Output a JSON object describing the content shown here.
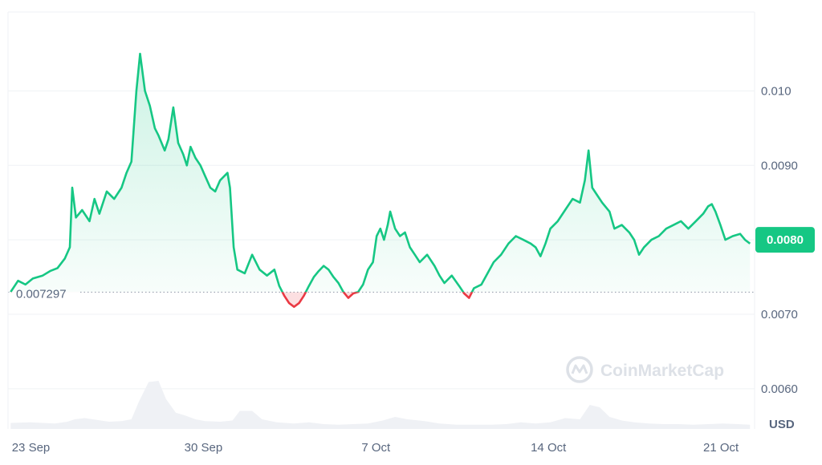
{
  "chart_data": {
    "type": "line",
    "title": "",
    "xlabel": "",
    "ylabel": "",
    "currency_label": "USD",
    "watermark": "CoinMarketCap",
    "y_ticks": [
      {
        "value": 0.006,
        "label": "0.0060"
      },
      {
        "value": 0.007,
        "label": "0.0070"
      },
      {
        "value": 0.009,
        "label": "0.0090"
      },
      {
        "value": 0.01,
        "label": "0.010"
      }
    ],
    "x_ticks": [
      {
        "day": 0,
        "label": "23 Sep"
      },
      {
        "day": 7,
        "label": "30 Sep"
      },
      {
        "day": 14,
        "label": "7 Oct"
      },
      {
        "day": 21,
        "label": "14 Oct"
      },
      {
        "day": 28,
        "label": "21 Oct"
      }
    ],
    "ylim": [
      0.00546,
      0.01106
    ],
    "grid": true,
    "reference_price": 0.007297,
    "reference_label": "0.007297",
    "current_price": 0.008,
    "current_price_label": "0.0080",
    "colors": {
      "up": "#16c784",
      "down": "#ea3943",
      "grid": "#eff2f5",
      "axis_text": "#58667e",
      "volume": "#eff1f5",
      "watermark": "#dde1e7"
    },
    "series": [
      {
        "points": [
          [
            -0.3,
            0.0073
          ],
          [
            0.0,
            0.00745
          ],
          [
            0.3,
            0.0074
          ],
          [
            0.6,
            0.00748
          ],
          [
            1.0,
            0.00752
          ],
          [
            1.3,
            0.00758
          ],
          [
            1.6,
            0.00762
          ],
          [
            1.9,
            0.00775
          ],
          [
            2.1,
            0.0079
          ],
          [
            2.2,
            0.0087
          ],
          [
            2.35,
            0.0083
          ],
          [
            2.6,
            0.0084
          ],
          [
            2.9,
            0.00825
          ],
          [
            3.1,
            0.00855
          ],
          [
            3.3,
            0.00835
          ],
          [
            3.6,
            0.00865
          ],
          [
            3.9,
            0.00855
          ],
          [
            4.2,
            0.0087
          ],
          [
            4.4,
            0.0089
          ],
          [
            4.6,
            0.00905
          ],
          [
            4.8,
            0.01
          ],
          [
            4.95,
            0.0105
          ],
          [
            5.15,
            0.01
          ],
          [
            5.35,
            0.0098
          ],
          [
            5.55,
            0.0095
          ],
          [
            5.7,
            0.0094
          ],
          [
            5.95,
            0.0092
          ],
          [
            6.1,
            0.00935
          ],
          [
            6.3,
            0.00978
          ],
          [
            6.5,
            0.0093
          ],
          [
            6.7,
            0.00915
          ],
          [
            6.85,
            0.009
          ],
          [
            7.0,
            0.00925
          ],
          [
            7.2,
            0.0091
          ],
          [
            7.4,
            0.009
          ],
          [
            7.6,
            0.00885
          ],
          [
            7.8,
            0.0087
          ],
          [
            8.0,
            0.00865
          ],
          [
            8.2,
            0.0088
          ],
          [
            8.5,
            0.0089
          ],
          [
            8.6,
            0.0087
          ],
          [
            8.75,
            0.0079
          ],
          [
            8.9,
            0.0076
          ],
          [
            9.2,
            0.00755
          ],
          [
            9.5,
            0.0078
          ],
          [
            9.8,
            0.0076
          ],
          [
            10.1,
            0.00752
          ],
          [
            10.4,
            0.0076
          ],
          [
            10.6,
            0.00738
          ],
          [
            10.8,
            0.00725
          ],
          [
            11.0,
            0.00715
          ],
          [
            11.2,
            0.0071
          ],
          [
            11.4,
            0.00715
          ],
          [
            11.6,
            0.00725
          ],
          [
            11.8,
            0.00738
          ],
          [
            12.0,
            0.0075
          ],
          [
            12.2,
            0.00758
          ],
          [
            12.4,
            0.00765
          ],
          [
            12.6,
            0.0076
          ],
          [
            12.8,
            0.0075
          ],
          [
            13.0,
            0.00742
          ],
          [
            13.2,
            0.0073
          ],
          [
            13.4,
            0.00722
          ],
          [
            13.6,
            0.00728
          ],
          [
            13.8,
            0.0073
          ],
          [
            14.0,
            0.0074
          ],
          [
            14.2,
            0.0076
          ],
          [
            14.4,
            0.0077
          ],
          [
            14.55,
            0.00805
          ],
          [
            14.7,
            0.00815
          ],
          [
            14.85,
            0.008
          ],
          [
            15.0,
            0.0082
          ],
          [
            15.1,
            0.00838
          ],
          [
            15.3,
            0.00815
          ],
          [
            15.5,
            0.00805
          ],
          [
            15.7,
            0.0081
          ],
          [
            15.9,
            0.0079
          ],
          [
            16.1,
            0.0078
          ],
          [
            16.3,
            0.0077
          ],
          [
            16.6,
            0.0078
          ],
          [
            16.9,
            0.00765
          ],
          [
            17.1,
            0.00752
          ],
          [
            17.3,
            0.00742
          ],
          [
            17.6,
            0.00752
          ],
          [
            17.9,
            0.00738
          ],
          [
            18.1,
            0.00728
          ],
          [
            18.3,
            0.00722
          ],
          [
            18.5,
            0.00735
          ],
          [
            18.8,
            0.0074
          ],
          [
            19.0,
            0.00752
          ],
          [
            19.3,
            0.0077
          ],
          [
            19.6,
            0.0078
          ],
          [
            19.9,
            0.00795
          ],
          [
            20.2,
            0.00805
          ],
          [
            20.5,
            0.008
          ],
          [
            20.8,
            0.00795
          ],
          [
            21.0,
            0.0079
          ],
          [
            21.2,
            0.00778
          ],
          [
            21.4,
            0.00795
          ],
          [
            21.6,
            0.00815
          ],
          [
            21.9,
            0.00825
          ],
          [
            22.2,
            0.0084
          ],
          [
            22.5,
            0.00855
          ],
          [
            22.8,
            0.0085
          ],
          [
            23.0,
            0.0088
          ],
          [
            23.15,
            0.0092
          ],
          [
            23.3,
            0.0087
          ],
          [
            23.5,
            0.0086
          ],
          [
            23.7,
            0.0085
          ],
          [
            24.0,
            0.00838
          ],
          [
            24.2,
            0.00815
          ],
          [
            24.5,
            0.0082
          ],
          [
            24.8,
            0.0081
          ],
          [
            25.0,
            0.008
          ],
          [
            25.2,
            0.0078
          ],
          [
            25.4,
            0.0079
          ],
          [
            25.7,
            0.008
          ],
          [
            26.0,
            0.00805
          ],
          [
            26.3,
            0.00815
          ],
          [
            26.6,
            0.0082
          ],
          [
            26.9,
            0.00825
          ],
          [
            27.2,
            0.00815
          ],
          [
            27.5,
            0.00825
          ],
          [
            27.8,
            0.00835
          ],
          [
            28.0,
            0.00845
          ],
          [
            28.15,
            0.00848
          ],
          [
            28.3,
            0.00838
          ],
          [
            28.5,
            0.0082
          ],
          [
            28.7,
            0.008
          ],
          [
            29.0,
            0.00805
          ],
          [
            29.3,
            0.00808
          ],
          [
            29.5,
            0.008
          ],
          [
            29.7,
            0.00795
          ]
        ]
      }
    ],
    "volume": [
      [
        -0.3,
        0.1
      ],
      [
        0.5,
        0.11
      ],
      [
        1.0,
        0.1
      ],
      [
        1.5,
        0.09
      ],
      [
        2.0,
        0.12
      ],
      [
        2.3,
        0.16
      ],
      [
        2.7,
        0.18
      ],
      [
        3.2,
        0.15
      ],
      [
        3.7,
        0.12
      ],
      [
        4.2,
        0.13
      ],
      [
        4.6,
        0.16
      ],
      [
        4.9,
        0.45
      ],
      [
        5.3,
        0.78
      ],
      [
        5.7,
        0.8
      ],
      [
        6.0,
        0.5
      ],
      [
        6.4,
        0.27
      ],
      [
        6.8,
        0.22
      ],
      [
        7.2,
        0.16
      ],
      [
        7.6,
        0.13
      ],
      [
        8.2,
        0.12
      ],
      [
        8.7,
        0.14
      ],
      [
        9.0,
        0.3
      ],
      [
        9.5,
        0.3
      ],
      [
        9.9,
        0.16
      ],
      [
        10.5,
        0.11
      ],
      [
        11.2,
        0.09
      ],
      [
        11.8,
        0.11
      ],
      [
        12.4,
        0.08
      ],
      [
        13.0,
        0.07
      ],
      [
        13.6,
        0.08
      ],
      [
        14.2,
        0.09
      ],
      [
        14.8,
        0.14
      ],
      [
        15.3,
        0.2
      ],
      [
        15.8,
        0.16
      ],
      [
        16.5,
        0.13
      ],
      [
        17.1,
        0.09
      ],
      [
        17.8,
        0.07
      ],
      [
        18.5,
        0.07
      ],
      [
        19.2,
        0.07
      ],
      [
        19.8,
        0.08
      ],
      [
        20.4,
        0.11
      ],
      [
        21.0,
        0.09
      ],
      [
        21.6,
        0.11
      ],
      [
        22.2,
        0.18
      ],
      [
        22.8,
        0.16
      ],
      [
        23.2,
        0.4
      ],
      [
        23.6,
        0.36
      ],
      [
        24.0,
        0.2
      ],
      [
        24.5,
        0.14
      ],
      [
        25.0,
        0.11
      ],
      [
        25.6,
        0.09
      ],
      [
        26.2,
        0.08
      ],
      [
        26.8,
        0.08
      ],
      [
        27.4,
        0.07
      ],
      [
        28.0,
        0.08
      ],
      [
        28.6,
        0.09
      ],
      [
        29.2,
        0.08
      ],
      [
        29.7,
        0.07
      ]
    ]
  }
}
